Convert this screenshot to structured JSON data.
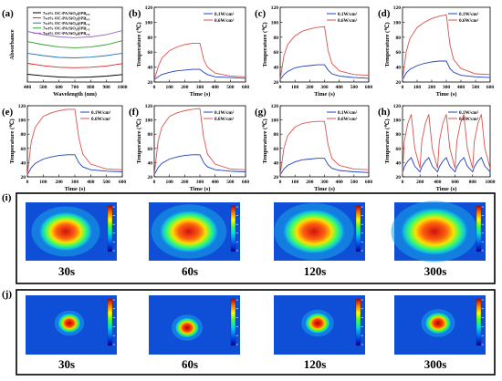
{
  "chart_data": [
    {
      "type": "line",
      "panel": "(a)",
      "xlabel": "Wavelength (nm)",
      "ylabel": "Absorbance",
      "xlim": [
        400,
        1000
      ],
      "xticks": [
        400,
        500,
        600,
        700,
        800,
        900,
        1000
      ],
      "yticks": [],
      "x": [
        400,
        500,
        600,
        700,
        800,
        900,
        1000
      ],
      "series": [
        {
          "name": "7wt% OC-PA/SiO₂@PB₀.₀",
          "color": "#000000",
          "values": [
            0.8,
            0.7,
            0.62,
            0.6,
            0.62,
            0.68,
            0.78
          ]
        },
        {
          "name": "7wt% OC-PA/SiO₂@PB₀.₅",
          "color": "#d62728",
          "values": [
            1.5,
            1.35,
            1.25,
            1.22,
            1.25,
            1.33,
            1.48
          ]
        },
        {
          "name": "7wt% OC-PA/SiO₂@PB₁.₀",
          "color": "#1f77b4",
          "values": [
            2.15,
            2.0,
            1.88,
            1.85,
            1.9,
            2.0,
            2.15
          ]
        },
        {
          "name": "7wt% OC-PA/SiO₂@PB₁.₅",
          "color": "#2ca02c",
          "values": [
            2.9,
            2.7,
            2.55,
            2.5,
            2.55,
            2.7,
            2.95
          ]
        },
        {
          "name": "7wt% OC-PA/SiO₂@PB₂.₀",
          "color": "#9467bd",
          "values": [
            3.55,
            3.35,
            3.2,
            3.15,
            3.2,
            3.35,
            3.6
          ]
        }
      ]
    },
    {
      "type": "line",
      "panel": "(b)",
      "xlabel": "Time (s)",
      "ylabel": "Temperature (℃)",
      "xlim": [
        0,
        600
      ],
      "ylim": [
        20,
        120
      ],
      "xticks": [
        0,
        100,
        200,
        300,
        400,
        500,
        600
      ],
      "yticks": [
        20,
        40,
        60,
        80,
        100,
        120
      ],
      "x": [
        0,
        25,
        50,
        100,
        150,
        200,
        250,
        300,
        325,
        350,
        400,
        500,
        600
      ],
      "series": [
        {
          "name": "0.1W/cm²",
          "color": "#1f3fbf",
          "values": [
            23,
            27,
            30,
            33,
            35,
            36,
            37,
            37,
            33,
            30,
            27,
            26,
            25
          ]
        },
        {
          "name": "0.6W/cm²",
          "color": "#d9534f",
          "values": [
            23,
            40,
            52,
            62,
            67,
            70,
            72,
            72,
            50,
            40,
            32,
            28,
            27
          ]
        }
      ]
    },
    {
      "type": "line",
      "panel": "(c)",
      "xlabel": "Time (s)",
      "ylabel": "Temperature (℃)",
      "xlim": [
        0,
        600
      ],
      "ylim": [
        20,
        120
      ],
      "xticks": [
        0,
        100,
        200,
        300,
        400,
        500,
        600
      ],
      "yticks": [
        20,
        40,
        60,
        80,
        100,
        120
      ],
      "x": [
        0,
        25,
        50,
        100,
        150,
        200,
        250,
        300,
        325,
        350,
        400,
        500,
        600
      ],
      "series": [
        {
          "name": "0.1W/cm²",
          "color": "#1f3fbf",
          "values": [
            23,
            30,
            34,
            39,
            41,
            42,
            43,
            43,
            36,
            31,
            28,
            26,
            25
          ]
        },
        {
          "name": "0.6W/cm²",
          "color": "#d9534f",
          "values": [
            23,
            55,
            70,
            82,
            88,
            91,
            93,
            94,
            62,
            45,
            35,
            30,
            29
          ]
        }
      ]
    },
    {
      "type": "line",
      "panel": "(d)",
      "xlabel": "Time (s)",
      "ylabel": "Temperature (℃)",
      "xlim": [
        0,
        600
      ],
      "ylim": [
        20,
        120
      ],
      "xticks": [
        0,
        100,
        200,
        300,
        400,
        500,
        600
      ],
      "yticks": [
        20,
        40,
        60,
        80,
        100,
        120
      ],
      "x": [
        0,
        25,
        50,
        100,
        150,
        200,
        250,
        300,
        325,
        350,
        400,
        500,
        600
      ],
      "series": [
        {
          "name": "0.1W/cm²",
          "color": "#1f3fbf",
          "values": [
            23,
            32,
            37,
            42,
            45,
            47,
            48,
            48,
            38,
            33,
            29,
            27,
            26
          ]
        },
        {
          "name": "0.6W/cm²",
          "color": "#d9534f",
          "values": [
            23,
            60,
            78,
            93,
            100,
            105,
            108,
            110,
            70,
            50,
            38,
            31,
            30
          ]
        }
      ]
    },
    {
      "type": "line",
      "panel": "(e)",
      "xlabel": "Time (s)",
      "ylabel": "Temperature (℃)",
      "xlim": [
        0,
        600
      ],
      "ylim": [
        20,
        120
      ],
      "xticks": [
        0,
        100,
        200,
        300,
        400,
        500,
        600
      ],
      "yticks": [
        20,
        40,
        60,
        80,
        100,
        120
      ],
      "x": [
        0,
        25,
        50,
        100,
        150,
        200,
        250,
        300,
        325,
        350,
        400,
        500,
        600
      ],
      "series": [
        {
          "name": "0.1W/cm²",
          "color": "#1f3fbf",
          "values": [
            23,
            33,
            39,
            45,
            48,
            50,
            51,
            51,
            40,
            34,
            30,
            28,
            27
          ]
        },
        {
          "name": "0.6W/cm²",
          "color": "#d9534f",
          "values": [
            23,
            70,
            90,
            105,
            110,
            113,
            115,
            115,
            75,
            52,
            38,
            31,
            30
          ]
        }
      ]
    },
    {
      "type": "line",
      "panel": "(f)",
      "xlabel": "Time (s)",
      "ylabel": "Temperature (℃)",
      "xlim": [
        0,
        600
      ],
      "ylim": [
        20,
        120
      ],
      "xticks": [
        0,
        100,
        200,
        300,
        400,
        500,
        600
      ],
      "yticks": [
        20,
        40,
        60,
        80,
        100,
        120
      ],
      "x": [
        0,
        25,
        50,
        100,
        150,
        200,
        250,
        300,
        325,
        350,
        400,
        500,
        600
      ],
      "series": [
        {
          "name": "0.1W/cm²",
          "color": "#1f3fbf",
          "values": [
            23,
            33,
            39,
            45,
            48,
            50,
            51,
            51,
            40,
            34,
            30,
            28,
            27
          ]
        },
        {
          "name": "0.6W/cm²",
          "color": "#d9534f",
          "values": [
            23,
            70,
            90,
            105,
            110,
            113,
            115,
            116,
            75,
            52,
            38,
            31,
            30
          ]
        }
      ]
    },
    {
      "type": "line",
      "panel": "(g)",
      "xlabel": "Time (s)",
      "ylabel": "Temperature (℃)",
      "xlim": [
        0,
        600
      ],
      "ylim": [
        20,
        120
      ],
      "xticks": [
        0,
        100,
        200,
        300,
        400,
        500,
        600
      ],
      "yticks": [
        20,
        40,
        60,
        80,
        100,
        120
      ],
      "x": [
        0,
        25,
        50,
        100,
        150,
        200,
        250,
        300,
        325,
        350,
        400,
        500,
        600
      ],
      "series": [
        {
          "name": "0.1W/cm²",
          "color": "#1f3fbf",
          "values": [
            23,
            31,
            36,
            41,
            44,
            45,
            46,
            46,
            37,
            32,
            29,
            27,
            26
          ]
        },
        {
          "name": "0.6W/cm²",
          "color": "#d9534f",
          "values": [
            23,
            60,
            78,
            90,
            95,
            97,
            98,
            98,
            65,
            46,
            36,
            31,
            30
          ]
        }
      ]
    },
    {
      "type": "line",
      "panel": "(h)",
      "xlabel": "Time (s)",
      "ylabel": "Temperature (℃)",
      "xlim": [
        0,
        1000
      ],
      "ylim": [
        20,
        120
      ],
      "xticks": [
        0,
        200,
        400,
        600,
        800,
        1000
      ],
      "yticks": [
        20,
        40,
        60,
        80,
        100,
        120
      ],
      "x": [
        0,
        20,
        60,
        100,
        140,
        200,
        220,
        260,
        300,
        340,
        400,
        420,
        460,
        500,
        540,
        600,
        620,
        660,
        700,
        740,
        800,
        820,
        860,
        900,
        940,
        1000
      ],
      "series": [
        {
          "name": "0.1W/cm²",
          "color": "#1f3fbf",
          "values": [
            25,
            34,
            42,
            47,
            35,
            27,
            34,
            42,
            47,
            35,
            27,
            34,
            42,
            47,
            35,
            27,
            34,
            42,
            47,
            35,
            27,
            34,
            42,
            47,
            35,
            27
          ]
        },
        {
          "name": "0.6W/cm²",
          "color": "#d9534f",
          "values": [
            25,
            70,
            95,
            108,
            60,
            32,
            70,
            95,
            108,
            60,
            32,
            70,
            95,
            108,
            60,
            32,
            70,
            95,
            108,
            60,
            32,
            70,
            95,
            108,
            60,
            32
          ]
        }
      ]
    }
  ],
  "panels": {
    "a": "(a)",
    "b": "(b)",
    "c": "(c)",
    "d": "(d)",
    "e": "(e)",
    "f": "(f)",
    "g": "(g)",
    "h": "(h)",
    "i": "(i)",
    "j": "(j)"
  },
  "thermal_rows": [
    {
      "panel": "(i)",
      "spot": "large",
      "frames": [
        "30s",
        "60s",
        "120s",
        "300s"
      ]
    },
    {
      "panel": "(j)",
      "spot": "small",
      "frames": [
        "30s",
        "60s",
        "120s",
        "300s"
      ]
    }
  ]
}
